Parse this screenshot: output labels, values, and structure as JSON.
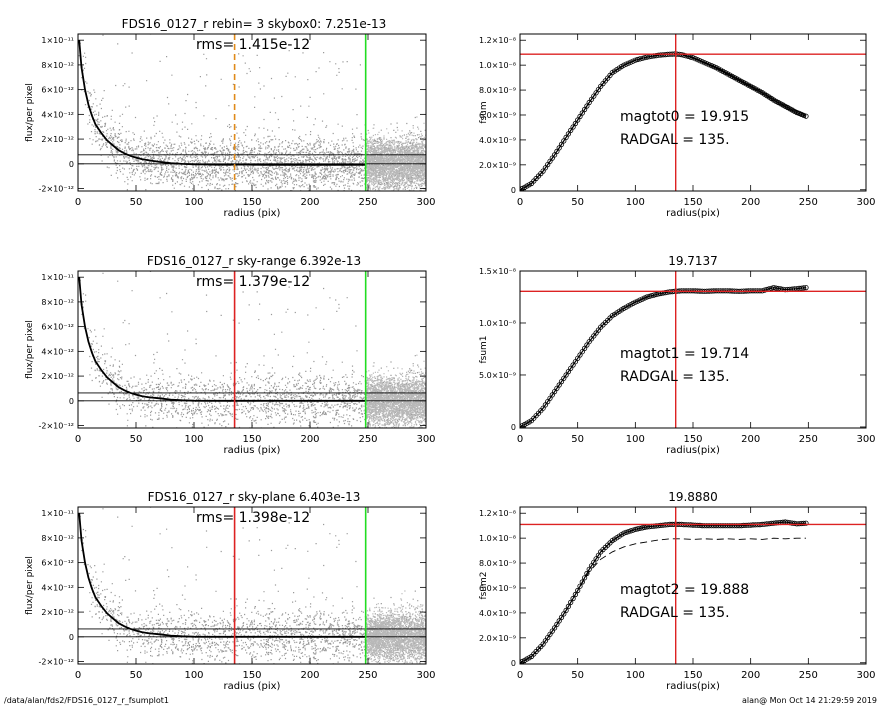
{
  "footer": {
    "path": "/data/alan/fds2/FDS16_0127_r_fsumplot1",
    "stamp": "alan@  Mon Oct 14 21:29:59 2019"
  },
  "chart_data": [
    {
      "type": "scatter",
      "title": "FDS16_0127_r rebin= 3    skybox0:  7.251e-13",
      "annotations": [
        {
          "text": "rms= 1.415e-12"
        }
      ],
      "xlabel": "radius (pix)",
      "ylabel": "flux/per pixel",
      "xlim": [
        0,
        300
      ],
      "ylim": [
        -2.2e-12,
        1.05e-11
      ],
      "xticks": [
        "0",
        "50",
        "100",
        "150",
        "200",
        "250",
        "300"
      ],
      "yticks": [
        "-2×10⁻¹²",
        "0",
        "2×10⁻¹²",
        "4×10⁻¹²",
        "6×10⁻¹²",
        "8×10⁻¹²",
        "1×10⁻¹¹"
      ],
      "hlines": [
        7.251e-13,
        0
      ],
      "vlines": [
        {
          "x": 135,
          "color": "#e08a1a",
          "style": "dashed"
        },
        {
          "x": 248,
          "color": "#22dd22",
          "style": "solid"
        }
      ],
      "profile": {
        "x": [
          1,
          3,
          6,
          9,
          12,
          15,
          20,
          25,
          30,
          35,
          40,
          45,
          50,
          55,
          60,
          70,
          80,
          90,
          100,
          110,
          120,
          130,
          140,
          150,
          160,
          170,
          180,
          190,
          200,
          210,
          220,
          230,
          240,
          248
        ],
        "y": [
          1e-11,
          7.8e-12,
          6e-12,
          4.8e-12,
          3.9e-12,
          3.2e-12,
          2.5e-12,
          1.9e-12,
          1.5e-12,
          1.1e-12,
          8.5e-13,
          6.5e-13,
          5e-13,
          3.8e-13,
          3e-13,
          1.5e-13,
          5e-14,
          -1e-14,
          -4e-14,
          -6e-14,
          -7e-14,
          -7e-14,
          -6e-14,
          -7e-14,
          -8e-14,
          -8e-14,
          -8e-14,
          -9e-14,
          -9e-14,
          -9e-14,
          -9e-14,
          -8e-14,
          -8e-14,
          -8e-14
        ]
      },
      "scatter_sigma": 1.415e-12
    },
    {
      "type": "line",
      "title": "",
      "annotations": [
        {
          "text": "magtot0 =  19.915"
        },
        {
          "text": "RADGAL =    135."
        }
      ],
      "xlabel": "radius(pix)",
      "ylabel": "fsum",
      "xlim": [
        0,
        300
      ],
      "ylim": [
        -1e-10,
        1.25e-08
      ],
      "xticks": [
        "0",
        "50",
        "100",
        "150",
        "200",
        "250",
        "300"
      ],
      "yticks": [
        "0",
        "2.0×10⁻⁹",
        "4.0×10⁻⁹",
        "6.0×10⁻⁹",
        "8.0×10⁻⁹",
        "1.0×10⁻⁸",
        "1.2×10⁻⁸"
      ],
      "hline": 1.088e-08,
      "vline": 135,
      "series": [
        {
          "x": [
            0,
            10,
            20,
            30,
            40,
            50,
            60,
            70,
            80,
            90,
            100,
            110,
            120,
            130,
            135,
            140,
            150,
            160,
            170,
            180,
            190,
            200,
            210,
            220,
            230,
            240,
            248
          ],
          "values": [
            0,
            5e-10,
            1.5e-09,
            2.8e-09,
            4.2e-09,
            5.6e-09,
            7e-09,
            8.3e-09,
            9.4e-09,
            1e-08,
            1.04e-08,
            1.065e-08,
            1.08e-08,
            1.088e-08,
            1.09e-08,
            1.085e-08,
            1.06e-08,
            1.02e-08,
            9.8e-09,
            9.3e-09,
            8.8e-09,
            8.3e-09,
            7.8e-09,
            7.2e-09,
            6.7e-09,
            6.2e-09,
            5.9e-09
          ]
        }
      ]
    },
    {
      "type": "scatter",
      "title": "FDS16_0127_r sky-range  6.392e-13",
      "annotations": [
        {
          "text": "rms= 1.379e-12"
        }
      ],
      "xlabel": "radius (pix)",
      "ylabel": "flux/per pixel",
      "xlim": [
        0,
        300
      ],
      "ylim": [
        -2.2e-12,
        1.05e-11
      ],
      "xticks": [
        "0",
        "50",
        "100",
        "150",
        "200",
        "250",
        "300"
      ],
      "yticks": [
        "-2×10⁻¹²",
        "0",
        "2×10⁻¹²",
        "4×10⁻¹²",
        "6×10⁻¹²",
        "8×10⁻¹²",
        "1×10⁻¹¹"
      ],
      "hlines": [
        6.392e-13,
        0
      ],
      "vlines": [
        {
          "x": 135,
          "color": "#dd2222",
          "style": "solid"
        },
        {
          "x": 248,
          "color": "#22dd22",
          "style": "solid"
        }
      ],
      "profile": {
        "x": [
          1,
          3,
          6,
          9,
          12,
          15,
          20,
          25,
          30,
          35,
          40,
          45,
          50,
          55,
          60,
          70,
          80,
          90,
          100,
          110,
          120,
          130,
          140,
          150,
          160,
          170,
          180,
          190,
          200,
          210,
          220,
          230,
          240,
          248
        ],
        "y": [
          1e-11,
          7.8e-12,
          6e-12,
          4.8e-12,
          3.9e-12,
          3.2e-12,
          2.5e-12,
          1.9e-12,
          1.5e-12,
          1.1e-12,
          8.5e-13,
          6.5e-13,
          5e-13,
          3.8e-13,
          3e-13,
          2e-13,
          1e-13,
          4e-14,
          1e-14,
          0,
          0,
          0,
          0,
          0,
          0,
          0,
          0,
          0,
          0,
          0,
          0,
          0,
          0,
          0
        ]
      },
      "scatter_sigma": 1.379e-12
    },
    {
      "type": "line",
      "title": "19.7137",
      "annotations": [
        {
          "text": "magtot1 =  19.714"
        },
        {
          "text": "RADGAL =    135."
        }
      ],
      "xlabel": "radius(pix)",
      "ylabel": "fsum1",
      "xlim": [
        0,
        300
      ],
      "ylim": [
        -1e-10,
        1.5e-08
      ],
      "xticks": [
        "0",
        "50",
        "100",
        "150",
        "200",
        "250",
        "300"
      ],
      "yticks": [
        "0",
        "5.0×10⁻⁹",
        "1.0×10⁻⁸",
        "1.5×10⁻⁸"
      ],
      "hline": 1.305e-08,
      "vline": 135,
      "series": [
        {
          "x": [
            0,
            10,
            20,
            30,
            40,
            50,
            60,
            70,
            80,
            90,
            100,
            110,
            120,
            130,
            140,
            150,
            160,
            170,
            180,
            190,
            200,
            210,
            220,
            230,
            240,
            248
          ],
          "values": [
            0,
            6e-10,
            1.8e-09,
            3.4e-09,
            5e-09,
            6.6e-09,
            8.2e-09,
            9.6e-09,
            1.07e-08,
            1.14e-08,
            1.2e-08,
            1.25e-08,
            1.28e-08,
            1.3e-08,
            1.31e-08,
            1.31e-08,
            1.305e-08,
            1.31e-08,
            1.31e-08,
            1.305e-08,
            1.31e-08,
            1.31e-08,
            1.34e-08,
            1.32e-08,
            1.33e-08,
            1.34e-08
          ]
        }
      ]
    },
    {
      "type": "scatter",
      "title": "FDS16_0127_r sky-plane  6.403e-13",
      "annotations": [
        {
          "text": "rms= 1.398e-12"
        }
      ],
      "xlabel": "radius (pix)",
      "ylabel": "flux/per pixel",
      "xlim": [
        0,
        300
      ],
      "ylim": [
        -2.2e-12,
        1.05e-11
      ],
      "xticks": [
        "0",
        "50",
        "100",
        "150",
        "200",
        "250",
        "300"
      ],
      "yticks": [
        "-2×10⁻¹²",
        "0",
        "2×10⁻¹²",
        "4×10⁻¹²",
        "6×10⁻¹²",
        "8×10⁻¹²",
        "1×10⁻¹¹"
      ],
      "hlines": [
        6.403e-13,
        0
      ],
      "vlines": [
        {
          "x": 135,
          "color": "#dd2222",
          "style": "solid"
        },
        {
          "x": 248,
          "color": "#22dd22",
          "style": "solid"
        }
      ],
      "profile": {
        "x": [
          1,
          3,
          6,
          9,
          12,
          15,
          20,
          25,
          30,
          35,
          40,
          45,
          50,
          55,
          60,
          70,
          80,
          90,
          100,
          110,
          120,
          130,
          140,
          150,
          160,
          170,
          180,
          190,
          200,
          210,
          220,
          230,
          240,
          248
        ],
        "y": [
          1e-11,
          7.8e-12,
          6e-12,
          4.8e-12,
          3.9e-12,
          3.2e-12,
          2.5e-12,
          1.9e-12,
          1.5e-12,
          1.1e-12,
          8.5e-13,
          6.5e-13,
          5e-13,
          3.8e-13,
          3e-13,
          2e-13,
          1e-13,
          4e-14,
          1e-14,
          0,
          0,
          0,
          0,
          0,
          0,
          0,
          0,
          0,
          0,
          0,
          0,
          0,
          0,
          0
        ]
      },
      "scatter_sigma": 1.398e-12
    },
    {
      "type": "line",
      "title": "19.8880",
      "annotations": [
        {
          "text": "magtot2 =  19.888"
        },
        {
          "text": "RADGAL =    135."
        }
      ],
      "xlabel": "radius(pix)",
      "ylabel": "fsum2",
      "xlim": [
        0,
        300
      ],
      "ylim": [
        -1e-10,
        1.25e-08
      ],
      "xticks": [
        "0",
        "50",
        "100",
        "150",
        "200",
        "250",
        "300"
      ],
      "yticks": [
        "0",
        "2.0×10⁻⁹",
        "4.0×10⁻⁹",
        "6.0×10⁻⁹",
        "8.0×10⁻⁹",
        "1.0×10⁻⁸",
        "1.2×10⁻⁸"
      ],
      "hline": 1.11e-08,
      "vline": 135,
      "series": [
        {
          "x": [
            0,
            10,
            20,
            30,
            40,
            50,
            60,
            70,
            80,
            90,
            100,
            110,
            120,
            130,
            140,
            150,
            160,
            170,
            180,
            190,
            200,
            210,
            220,
            230,
            240,
            248
          ],
          "values": [
            0,
            5e-10,
            1.5e-09,
            2.8e-09,
            4.2e-09,
            5.8e-09,
            7.5e-09,
            8.9e-09,
            9.8e-09,
            1.04e-08,
            1.07e-08,
            1.09e-08,
            1.1e-08,
            1.11e-08,
            1.11e-08,
            1.105e-08,
            1.1e-08,
            1.1e-08,
            1.1e-08,
            1.1e-08,
            1.105e-08,
            1.11e-08,
            1.12e-08,
            1.13e-08,
            1.115e-08,
            1.12e-08
          ]
        },
        {
          "x": [
            0,
            10,
            20,
            30,
            40,
            50,
            60,
            70,
            80,
            90,
            100,
            110,
            120,
            130,
            140,
            150,
            160,
            170,
            180,
            190,
            200,
            210,
            220,
            230,
            240,
            248
          ],
          "values": [
            0,
            5e-10,
            1.5e-09,
            2.8e-09,
            4.2e-09,
            5.8e-09,
            7.3e-09,
            8.3e-09,
            8.9e-09,
            9.3e-09,
            9.55e-09,
            9.7e-09,
            9.85e-09,
            9.95e-09,
            9.95e-09,
            9.9e-09,
            9.95e-09,
            9.9e-09,
            9.95e-09,
            9.9e-09,
            9.95e-09,
            9.9e-09,
            1e-08,
            9.95e-09,
            1e-08,
            1e-08
          ]
        }
      ]
    }
  ]
}
